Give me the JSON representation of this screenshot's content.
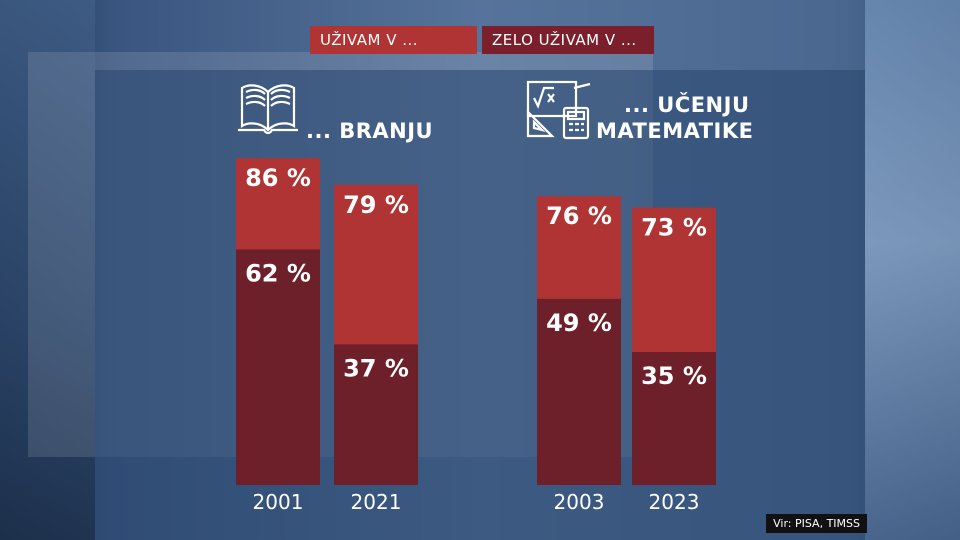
{
  "legend": {
    "series_a": "UŽIVAM V ...",
    "series_b": "ZELO UŽIVAM V ..."
  },
  "groups": {
    "reading_title": "... BRANJU",
    "math_title_line1": "... UČENJU",
    "math_title_line2": "MATEMATIKE"
  },
  "source": "Vir: PISA, TIMSS",
  "colors": {
    "enjoy": "#b03434",
    "enjoy_very": "#6d1f2a"
  },
  "chart_data": {
    "type": "bar",
    "stacked": "overlay",
    "groups": [
      "... BRANJU",
      "... UČENJU MATEMATIKE"
    ],
    "categories": [
      "2001",
      "2021",
      "2003",
      "2023"
    ],
    "category_group": [
      0,
      0,
      1,
      1
    ],
    "series": [
      {
        "name": "UŽIVAM V ...",
        "values": [
          86,
          79,
          76,
          73
        ],
        "labels": [
          "86 %",
          "79 %",
          "76 %",
          "73 %"
        ]
      },
      {
        "name": "ZELO UŽIVAM V ...",
        "values": [
          62,
          37,
          49,
          35
        ],
        "labels": [
          "62 %",
          "37 %",
          "49 %",
          "35 %"
        ]
      }
    ],
    "ylim": [
      0,
      100
    ],
    "grid": false,
    "legend_position": "top"
  }
}
